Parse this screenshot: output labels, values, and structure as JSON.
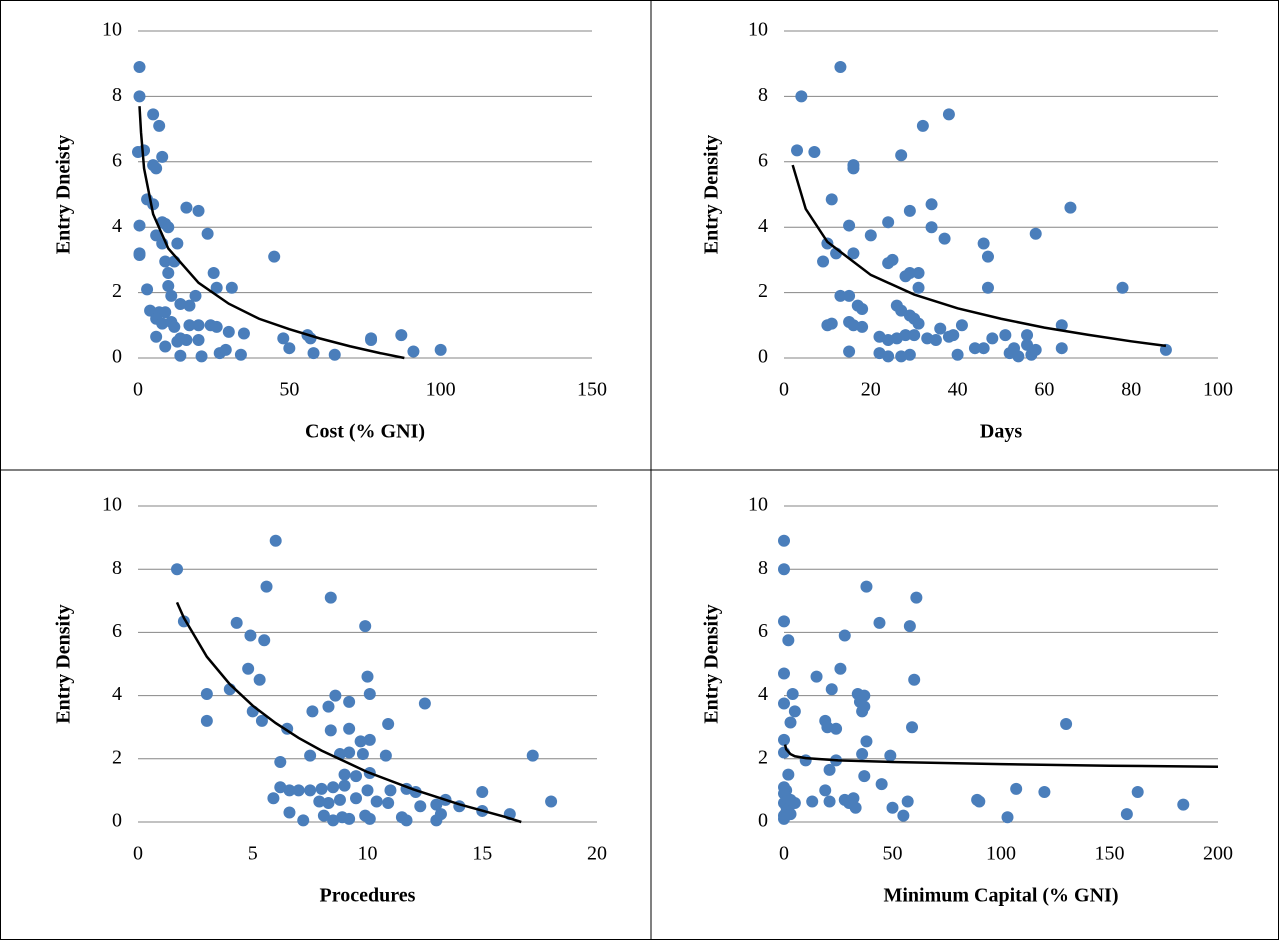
{
  "chart_data": [
    {
      "type": "scatter",
      "x_label": "Cost (% GNI)",
      "y_label": "Entry Dneisty",
      "grid": true,
      "xlim": [
        0,
        150
      ],
      "xticks": [
        0,
        50,
        100,
        150
      ],
      "ylim": [
        0,
        10
      ],
      "yticks": [
        0,
        2,
        4,
        6,
        8,
        10
      ],
      "series": [
        {
          "color": "#4a7ebb",
          "x": [
            0.5,
            0.5,
            0,
            2,
            5,
            7,
            8,
            5,
            6,
            3,
            5,
            0.5,
            0.5,
            0.5,
            8,
            9,
            10,
            6,
            8,
            13,
            16,
            20,
            23,
            45,
            9,
            12,
            10,
            25,
            10,
            3,
            11,
            19,
            26,
            31,
            14,
            17,
            4,
            7,
            9,
            6,
            8,
            11,
            12,
            17,
            20,
            24,
            26,
            30,
            35,
            14,
            13,
            16,
            20,
            6,
            9,
            14,
            21,
            27,
            29,
            34,
            48,
            50,
            56,
            57,
            58,
            65,
            77,
            77,
            87,
            91,
            100
          ],
          "values": [
            8.9,
            8.0,
            6.3,
            6.35,
            7.45,
            7.1,
            6.15,
            5.9,
            5.8,
            4.85,
            4.7,
            4.05,
            3.2,
            3.15,
            4.15,
            4.1,
            4.0,
            3.75,
            3.5,
            3.5,
            4.6,
            4.5,
            3.8,
            3.1,
            2.95,
            2.95,
            2.6,
            2.6,
            2.2,
            2.1,
            1.9,
            1.9,
            2.15,
            2.15,
            1.65,
            1.6,
            1.45,
            1.4,
            1.4,
            1.2,
            1.05,
            1.1,
            0.95,
            1.0,
            1.0,
            1.0,
            0.95,
            0.8,
            0.75,
            0.6,
            0.5,
            0.55,
            0.55,
            0.65,
            0.35,
            0.07,
            0.05,
            0.15,
            0.25,
            0.1,
            0.6,
            0.3,
            0.7,
            0.6,
            0.15,
            0.1,
            0.6,
            0.55,
            0.7,
            0.2,
            0.25
          ]
        }
      ],
      "trend": {
        "color": "#000000",
        "x": [
          0.5,
          1,
          2,
          5,
          10,
          20,
          30,
          40,
          50,
          60,
          70,
          80,
          88
        ],
        "values": [
          7.7,
          6.9,
          5.8,
          4.4,
          3.35,
          2.3,
          1.66,
          1.2,
          0.88,
          0.6,
          0.36,
          0.15,
          0
        ]
      }
    },
    {
      "type": "scatter",
      "x_label": "Days",
      "y_label": "Entry Density",
      "grid": true,
      "xlim": [
        0,
        100
      ],
      "xticks": [
        0,
        20,
        40,
        60,
        80,
        100
      ],
      "ylim": [
        0,
        10
      ],
      "yticks": [
        0,
        2,
        4,
        6,
        8,
        10
      ],
      "series": [
        {
          "color": "#4a7ebb",
          "x": [
            13,
            4,
            3,
            7,
            32,
            38,
            27,
            16,
            16,
            11,
            34,
            66,
            29,
            15,
            24,
            34,
            20,
            37,
            58,
            10,
            46,
            47,
            16,
            12,
            9,
            24,
            25,
            29,
            31,
            28,
            47,
            78,
            31,
            13,
            15,
            17,
            18,
            26,
            27,
            29,
            30,
            15,
            16,
            10,
            11,
            18,
            31,
            36,
            41,
            22,
            24,
            26,
            28,
            30,
            33,
            35,
            38,
            39,
            46,
            48,
            51,
            52,
            53,
            54,
            56,
            57,
            58,
            64,
            64,
            22,
            24,
            27,
            29,
            15,
            40,
            44,
            88,
            56
          ],
          "values": [
            8.9,
            8.0,
            6.35,
            6.3,
            7.1,
            7.45,
            6.2,
            5.9,
            5.8,
            4.85,
            4.7,
            4.6,
            4.5,
            4.05,
            4.15,
            4.0,
            3.75,
            3.65,
            3.8,
            3.5,
            3.5,
            3.1,
            3.2,
            3.2,
            2.95,
            2.9,
            3.0,
            2.6,
            2.6,
            2.5,
            2.15,
            2.15,
            2.15,
            1.9,
            1.9,
            1.6,
            1.5,
            1.6,
            1.45,
            1.3,
            1.2,
            1.1,
            1.0,
            1.0,
            1.05,
            0.95,
            1.05,
            0.9,
            1.0,
            0.65,
            0.55,
            0.6,
            0.7,
            0.7,
            0.6,
            0.55,
            0.65,
            0.7,
            0.3,
            0.6,
            0.7,
            0.15,
            0.3,
            0.05,
            0.4,
            0.1,
            0.25,
            1.0,
            0.3,
            0.15,
            0.05,
            0.05,
            0.1,
            0.2,
            0.1,
            0.3,
            0.25,
            0.7
          ]
        }
      ],
      "trend": {
        "color": "#000000",
        "x": [
          2,
          5,
          10,
          20,
          30,
          40,
          50,
          60,
          70,
          80,
          88
        ],
        "values": [
          5.9,
          4.56,
          3.55,
          2.54,
          1.94,
          1.52,
          1.2,
          0.93,
          0.71,
          0.51,
          0.37
        ]
      }
    },
    {
      "type": "scatter",
      "x_label": "Procedures",
      "y_label": "Entry Density",
      "grid": true,
      "xlim": [
        0,
        20
      ],
      "xticks": [
        0,
        5,
        10,
        15,
        20
      ],
      "ylim": [
        0,
        10
      ],
      "yticks": [
        0,
        2,
        4,
        6,
        8,
        10
      ],
      "series": [
        {
          "color": "#4a7ebb",
          "x": [
            6,
            1.7,
            5.6,
            8.4,
            4.3,
            9.9,
            2,
            4.9,
            5.5,
            4.8,
            5.3,
            10,
            3,
            4,
            8.6,
            10.1,
            3,
            5.4,
            5,
            7.6,
            8.3,
            9.2,
            12.5,
            6.5,
            8.4,
            9.2,
            10.9,
            8.8,
            9.2,
            9.8,
            10.8,
            17.2,
            7.5,
            6.2,
            10.1,
            9.7,
            9,
            9.5,
            10.1,
            6.2,
            6.6,
            7,
            7.5,
            8,
            8.5,
            9,
            10,
            11,
            11.7,
            12.1,
            15,
            5.9,
            7.9,
            8.3,
            8.8,
            9.5,
            10.4,
            10.9,
            12.3,
            13,
            13.4,
            14,
            15,
            16.2,
            18,
            6.6,
            7.2,
            8.1,
            8.9,
            9.2,
            9.9,
            10.1,
            11.5,
            11.7,
            13,
            13.2,
            8.5
          ],
          "values": [
            8.9,
            8.0,
            7.45,
            7.1,
            6.3,
            6.2,
            6.35,
            5.9,
            5.75,
            4.85,
            4.5,
            4.6,
            4.05,
            4.2,
            4.0,
            4.05,
            3.2,
            3.2,
            3.5,
            3.5,
            3.65,
            3.8,
            3.75,
            2.95,
            2.9,
            2.95,
            3.1,
            2.15,
            2.2,
            2.15,
            2.1,
            2.1,
            2.1,
            1.9,
            2.6,
            2.55,
            1.5,
            1.45,
            1.55,
            1.1,
            1.0,
            1.0,
            1.0,
            1.05,
            1.1,
            1.15,
            1.0,
            1.0,
            1.05,
            0.95,
            0.95,
            0.75,
            0.65,
            0.6,
            0.7,
            0.75,
            0.65,
            0.6,
            0.5,
            0.55,
            0.7,
            0.5,
            0.35,
            0.25,
            0.65,
            0.3,
            0.05,
            0.2,
            0.15,
            0.1,
            0.2,
            0.1,
            0.15,
            0.05,
            0.05,
            0.25,
            0.05
          ]
        }
      ],
      "trend": {
        "color": "#000000",
        "x": [
          1.7,
          2,
          3,
          4,
          5,
          6,
          7,
          8,
          10,
          12,
          14,
          16,
          16.7
        ],
        "values": [
          6.95,
          6.46,
          5.23,
          4.36,
          3.68,
          3.13,
          2.66,
          2.26,
          1.58,
          1.03,
          0.56,
          0.16,
          0
        ]
      }
    },
    {
      "type": "scatter",
      "x_label": "Minimum Capital (% GNI)",
      "y_label": "Entry Density",
      "grid": true,
      "xlim": [
        0,
        200
      ],
      "xticks": [
        0,
        50,
        100,
        150,
        200
      ],
      "ylim": [
        0,
        10
      ],
      "yticks": [
        0,
        2,
        4,
        6,
        8,
        10
      ],
      "series": [
        {
          "color": "#4a7ebb",
          "x": [
            0,
            0,
            0,
            2,
            0,
            0,
            0,
            0,
            4,
            3,
            5,
            2,
            1,
            0,
            0,
            0,
            1,
            2,
            1,
            0,
            0,
            3,
            5,
            3,
            10,
            13,
            15,
            19,
            20,
            21,
            21,
            22,
            24,
            24,
            26,
            28,
            28,
            30,
            32,
            33,
            34,
            35,
            36,
            36,
            37,
            37,
            38,
            37,
            38,
            44,
            45,
            49,
            50,
            55,
            57,
            58,
            59,
            60,
            61,
            89,
            90,
            103,
            107,
            120,
            130,
            158,
            163,
            184,
            19
          ],
          "values": [
            8.9,
            8.0,
            6.35,
            5.75,
            4.7,
            3.75,
            2.6,
            2.2,
            4.05,
            3.15,
            3.5,
            1.5,
            1.0,
            1.1,
            0.9,
            0.6,
            0.5,
            0.4,
            0.3,
            0.2,
            0.1,
            0.25,
            0.6,
            0.7,
            1.95,
            0.65,
            4.6,
            3.2,
            3.0,
            1.65,
            0.65,
            4.2,
            2.95,
            1.95,
            4.85,
            5.9,
            0.7,
            0.6,
            0.75,
            0.45,
            4.05,
            3.8,
            3.5,
            2.15,
            4.0,
            3.65,
            2.55,
            1.45,
            7.45,
            6.3,
            1.2,
            2.1,
            0.45,
            0.2,
            0.65,
            6.2,
            3.0,
            4.5,
            7.1,
            0.7,
            0.65,
            0.15,
            1.05,
            0.95,
            3.1,
            0.25,
            0.95,
            0.55,
            1.0
          ]
        }
      ],
      "trend": {
        "color": "#000000",
        "x": [
          0.5,
          1,
          3,
          5,
          10,
          25,
          50,
          100,
          150,
          200
        ],
        "values": [
          2.45,
          2.3,
          2.15,
          2.08,
          2.02,
          1.95,
          1.9,
          1.83,
          1.78,
          1.75
        ]
      }
    }
  ]
}
